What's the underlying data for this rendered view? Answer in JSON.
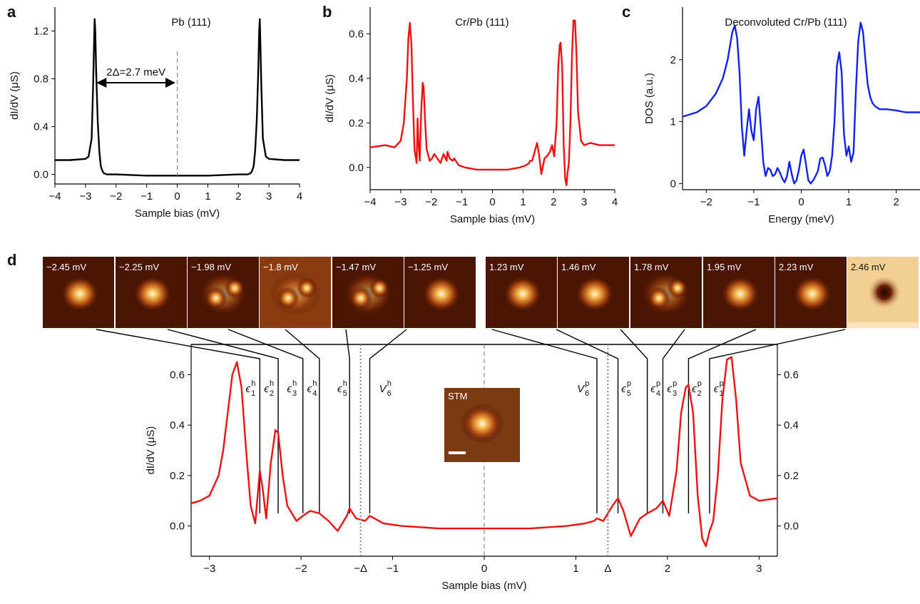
{
  "panel_letters": [
    "a",
    "b",
    "c",
    "d"
  ],
  "colors": {
    "black": "#000000",
    "red": "#ee1111",
    "blue": "#1122ee"
  },
  "panel_d_text": {
    "minus_delta": "−Δ",
    "delta": "Δ",
    "stm_label": "STM",
    "peak_labels_h": [
      "ϵ1h",
      "ϵ2h",
      "ϵ3h",
      "ϵ4h",
      "ϵ5h",
      "V6h"
    ],
    "peak_labels_p": [
      "V6p",
      "ϵ5p",
      "ϵ4p",
      "ϵ3p",
      "ϵ2p",
      "ϵ1p"
    ]
  },
  "dIdV_maps": {
    "labels": [
      "−2.45 mV",
      "−2.25 mV",
      "−1.98 mV",
      "−1.8 mV",
      "−1.47 mV",
      "−1.25 mV",
      "1.23 mV",
      "1.46 mV",
      "1.78 mV",
      "1.95 mV",
      "2.23 mV",
      "2.46 mV"
    ],
    "energies_mV": [
      -2.45,
      -2.25,
      -1.98,
      -1.8,
      -1.47,
      -1.25,
      1.23,
      1.46,
      1.78,
      1.95,
      2.23,
      2.46
    ]
  },
  "chart_data": [
    {
      "panel": "a",
      "type": "line",
      "title": "Pb (111)",
      "xlabel": "Sample bias (mV)",
      "ylabel": "dI/dV (μS)",
      "xlim": [
        -4,
        4
      ],
      "ylim": [
        -0.08,
        1.4
      ],
      "xticks": [
        -4,
        -3,
        -2,
        -1,
        0,
        1,
        2,
        3,
        4
      ],
      "yticks": [
        0.0,
        0.4,
        0.8,
        1.2
      ],
      "xtick_labels": [
        "−4",
        "−3",
        "−2",
        "−1",
        "0",
        "1",
        "2",
        "3",
        "4"
      ],
      "ytick_labels": [
        "0.0",
        "0.4",
        "0.8",
        "1.2"
      ],
      "annotation": "2Δ=2.7 meV",
      "series": [
        {
          "color": "#000000",
          "x": [
            -4.0,
            -3.5,
            -3.0,
            -2.9,
            -2.8,
            -2.75,
            -2.72,
            -2.7,
            -2.68,
            -2.65,
            -2.6,
            -2.55,
            -2.5,
            -2.45,
            -2.4,
            -2.3,
            -2.0,
            -1.0,
            0.0,
            1.0,
            2.0,
            2.3,
            2.4,
            2.45,
            2.5,
            2.55,
            2.6,
            2.65,
            2.68,
            2.7,
            2.72,
            2.75,
            2.8,
            2.9,
            3.0,
            3.5,
            4.0
          ],
          "y": [
            0.12,
            0.12,
            0.13,
            0.15,
            0.3,
            0.75,
            1.1,
            1.3,
            1.2,
            0.85,
            0.45,
            0.2,
            0.07,
            0.03,
            0.01,
            0.0,
            0.0,
            -0.01,
            -0.01,
            -0.01,
            0.0,
            0.0,
            0.01,
            0.03,
            0.07,
            0.2,
            0.45,
            0.85,
            1.2,
            1.3,
            1.1,
            0.75,
            0.3,
            0.15,
            0.13,
            0.12,
            0.12
          ]
        }
      ]
    },
    {
      "panel": "b",
      "type": "line",
      "title": "Cr/Pb (111)",
      "xlabel": "Sample bias (mV)",
      "ylabel": "dI/dV (μS)",
      "xlim": [
        -4,
        4
      ],
      "ylim": [
        -0.1,
        0.72
      ],
      "xticks": [
        -4,
        -3,
        -2,
        -1,
        0,
        1,
        2,
        3,
        4
      ],
      "yticks": [
        0.0,
        0.2,
        0.4,
        0.6
      ],
      "xtick_labels": [
        "−4",
        "−3",
        "−2",
        "−1",
        "0",
        "1",
        "2",
        "3",
        "4"
      ],
      "ytick_labels": [
        "0.0",
        "0.2",
        "0.4",
        "0.6"
      ],
      "series": [
        {
          "color": "#ee1111",
          "x": [
            -4.0,
            -3.5,
            -3.2,
            -3.0,
            -2.9,
            -2.8,
            -2.75,
            -2.7,
            -2.65,
            -2.6,
            -2.55,
            -2.48,
            -2.45,
            -2.42,
            -2.38,
            -2.33,
            -2.28,
            -2.25,
            -2.2,
            -2.15,
            -2.05,
            -1.98,
            -1.9,
            -1.8,
            -1.7,
            -1.6,
            -1.5,
            -1.47,
            -1.4,
            -1.3,
            -1.25,
            -1.1,
            -0.9,
            -0.5,
            0.0,
            0.5,
            0.9,
            1.1,
            1.2,
            1.23,
            1.3,
            1.4,
            1.46,
            1.52,
            1.6,
            1.7,
            1.78,
            1.88,
            1.95,
            2.02,
            2.1,
            2.15,
            2.2,
            2.23,
            2.28,
            2.33,
            2.38,
            2.42,
            2.46,
            2.5,
            2.55,
            2.6,
            2.65,
            2.7,
            2.75,
            2.8,
            2.9,
            3.0,
            3.2,
            3.5,
            4.0
          ],
          "y": [
            0.09,
            0.1,
            0.09,
            0.12,
            0.2,
            0.4,
            0.58,
            0.65,
            0.55,
            0.3,
            0.08,
            0.02,
            0.22,
            0.12,
            0.03,
            0.25,
            0.38,
            0.36,
            0.2,
            0.08,
            0.03,
            0.04,
            0.06,
            0.04,
            0.02,
            0.06,
            0.03,
            0.07,
            0.04,
            0.03,
            0.04,
            0.01,
            0.0,
            -0.01,
            -0.01,
            -0.01,
            0.0,
            0.01,
            0.02,
            0.03,
            0.03,
            0.08,
            0.11,
            0.06,
            -0.03,
            0.04,
            0.05,
            0.07,
            0.1,
            0.05,
            0.2,
            0.45,
            0.55,
            0.56,
            0.45,
            0.1,
            -0.05,
            -0.08,
            -0.02,
            0.02,
            0.2,
            0.5,
            0.66,
            0.66,
            0.5,
            0.25,
            0.12,
            0.1,
            0.11,
            0.1,
            0.1
          ]
        }
      ]
    },
    {
      "panel": "c",
      "type": "line",
      "title": "Deconvoluted Cr/Pb (111)",
      "xlabel": "Energy (meV)",
      "ylabel": "DOS (a.u.)",
      "xlim": [
        -2.5,
        2.5
      ],
      "ylim": [
        -0.1,
        2.85
      ],
      "xticks": [
        -2,
        -1,
        0,
        1,
        2
      ],
      "yticks": [
        0,
        1,
        2
      ],
      "xtick_labels": [
        "−2",
        "−1",
        "0",
        "1",
        "2"
      ],
      "ytick_labels": [
        "0",
        "1",
        "2"
      ],
      "series": [
        {
          "color": "#1122ee",
          "x": [
            -2.5,
            -2.2,
            -2.0,
            -1.8,
            -1.65,
            -1.55,
            -1.45,
            -1.4,
            -1.35,
            -1.3,
            -1.25,
            -1.2,
            -1.15,
            -1.1,
            -1.05,
            -1.0,
            -0.95,
            -0.9,
            -0.85,
            -0.8,
            -0.75,
            -0.7,
            -0.65,
            -0.6,
            -0.55,
            -0.5,
            -0.45,
            -0.4,
            -0.35,
            -0.3,
            -0.25,
            -0.2,
            -0.15,
            -0.1,
            -0.05,
            0.0,
            0.05,
            0.1,
            0.15,
            0.2,
            0.25,
            0.3,
            0.35,
            0.4,
            0.45,
            0.5,
            0.55,
            0.6,
            0.65,
            0.7,
            0.75,
            0.8,
            0.85,
            0.9,
            0.95,
            1.0,
            1.05,
            1.1,
            1.15,
            1.2,
            1.25,
            1.3,
            1.35,
            1.4,
            1.45,
            1.5,
            1.55,
            1.65,
            1.8,
            2.0,
            2.2,
            2.5
          ],
          "y": [
            1.08,
            1.15,
            1.25,
            1.45,
            1.7,
            2.0,
            2.45,
            2.55,
            2.35,
            1.8,
            0.9,
            0.45,
            0.85,
            1.2,
            0.85,
            0.7,
            1.2,
            1.4,
            0.9,
            0.35,
            0.12,
            0.25,
            0.22,
            0.12,
            0.15,
            0.25,
            0.18,
            0.08,
            0.02,
            0.12,
            0.35,
            0.15,
            0.0,
            0.05,
            0.22,
            0.45,
            0.55,
            0.3,
            0.05,
            0.0,
            0.05,
            0.12,
            0.2,
            0.4,
            0.42,
            0.3,
            0.12,
            0.2,
            0.45,
            1.0,
            1.9,
            2.12,
            1.8,
            0.8,
            0.45,
            0.6,
            0.35,
            0.5,
            1.5,
            2.3,
            2.6,
            2.45,
            2.0,
            1.6,
            1.4,
            1.3,
            1.25,
            1.2,
            1.2,
            1.18,
            1.15,
            1.15
          ]
        }
      ]
    },
    {
      "panel": "d",
      "type": "line",
      "title": "",
      "xlabel": "Sample bias (mV)",
      "ylabel": "dI/dV (μS)",
      "xlim": [
        -3.2,
        3.2
      ],
      "ylim": [
        -0.12,
        0.72
      ],
      "xticks": [
        -3,
        -2,
        -1,
        0,
        1,
        2,
        3
      ],
      "yticks": [
        0.0,
        0.2,
        0.4,
        0.6
      ],
      "xtick_labels": [
        "−3",
        "−2",
        "−1",
        "0",
        "1",
        "2",
        "3"
      ],
      "ytick_labels": [
        "0.0",
        "0.2",
        "0.4",
        "0.6"
      ],
      "gap_marker_mV": [
        -1.35,
        1.35
      ],
      "peak_energies_mV": [
        -2.45,
        -2.25,
        -1.98,
        -1.8,
        -1.47,
        -1.25,
        1.23,
        1.46,
        1.78,
        1.95,
        2.23,
        2.46
      ],
      "series": [
        {
          "color": "#ee1111",
          "x": [
            -3.2,
            -3.1,
            -3.0,
            -2.9,
            -2.85,
            -2.8,
            -2.75,
            -2.7,
            -2.65,
            -2.6,
            -2.55,
            -2.5,
            -2.45,
            -2.42,
            -2.38,
            -2.33,
            -2.28,
            -2.25,
            -2.2,
            -2.15,
            -2.05,
            -1.98,
            -1.9,
            -1.8,
            -1.7,
            -1.6,
            -1.5,
            -1.47,
            -1.4,
            -1.3,
            -1.25,
            -1.1,
            -0.9,
            -0.5,
            0.0,
            0.5,
            0.9,
            1.1,
            1.2,
            1.23,
            1.3,
            1.4,
            1.46,
            1.52,
            1.6,
            1.7,
            1.78,
            1.88,
            1.95,
            2.02,
            2.1,
            2.15,
            2.2,
            2.23,
            2.28,
            2.33,
            2.38,
            2.42,
            2.46,
            2.5,
            2.55,
            2.6,
            2.65,
            2.7,
            2.75,
            2.8,
            2.9,
            3.0,
            3.2
          ],
          "y": [
            0.09,
            0.1,
            0.12,
            0.2,
            0.3,
            0.45,
            0.6,
            0.65,
            0.55,
            0.3,
            0.08,
            0.01,
            0.22,
            0.15,
            0.03,
            0.25,
            0.38,
            0.37,
            0.2,
            0.08,
            0.02,
            0.04,
            0.06,
            0.05,
            0.02,
            -0.02,
            0.04,
            0.07,
            0.03,
            0.02,
            0.04,
            0.01,
            0.0,
            -0.01,
            -0.01,
            -0.01,
            0.0,
            0.01,
            0.02,
            0.03,
            0.02,
            0.08,
            0.11,
            0.06,
            -0.04,
            0.03,
            0.05,
            0.07,
            0.1,
            0.04,
            0.22,
            0.45,
            0.55,
            0.56,
            0.45,
            0.12,
            -0.05,
            -0.08,
            -0.02,
            0.02,
            0.2,
            0.5,
            0.66,
            0.67,
            0.5,
            0.25,
            0.12,
            0.1,
            0.11
          ]
        }
      ]
    }
  ]
}
